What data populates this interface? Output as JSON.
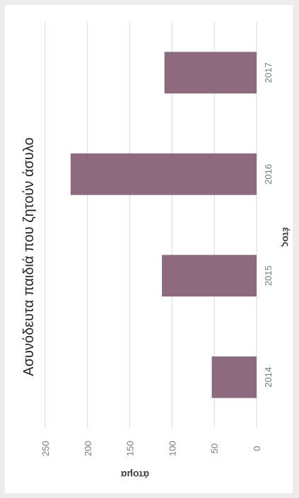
{
  "chart_data": {
    "type": "bar",
    "title": "Ασυνόδευτα παιδιά που ζητούν άσυλο",
    "xlabel": "έτος",
    "ylabel": "άτομα",
    "categories": [
      "2014",
      "2015",
      "2016",
      "2017"
    ],
    "values": [
      53,
      112,
      220,
      109
    ],
    "ylim": [
      0,
      250
    ],
    "yticks": [
      "0",
      "50",
      "100",
      "150",
      "200",
      "250"
    ],
    "grid": true,
    "legend": "none",
    "bar_color": "#8e6a7e",
    "grid_color": "#d9d9d9"
  }
}
